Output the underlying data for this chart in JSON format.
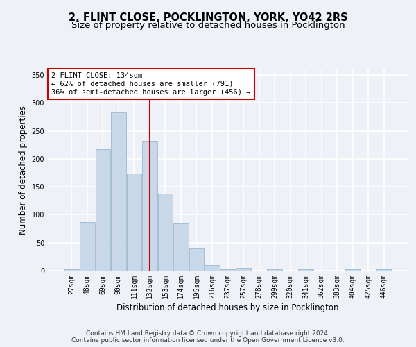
{
  "title1": "2, FLINT CLOSE, POCKLINGTON, YORK, YO42 2RS",
  "title2": "Size of property relative to detached houses in Pocklington",
  "xlabel": "Distribution of detached houses by size in Pocklington",
  "ylabel": "Number of detached properties",
  "bin_labels": [
    "27sqm",
    "48sqm",
    "69sqm",
    "90sqm",
    "111sqm",
    "132sqm",
    "153sqm",
    "174sqm",
    "195sqm",
    "216sqm",
    "237sqm",
    "257sqm",
    "278sqm",
    "299sqm",
    "320sqm",
    "341sqm",
    "362sqm",
    "383sqm",
    "404sqm",
    "425sqm",
    "446sqm"
  ],
  "bar_values": [
    3,
    87,
    217,
    283,
    174,
    232,
    138,
    85,
    40,
    10,
    3,
    5,
    0,
    3,
    0,
    2,
    0,
    0,
    2,
    0,
    2
  ],
  "property_bin_index": 5,
  "bar_color": "#c8d8e8",
  "bar_edge_color": "#8fb0cc",
  "vline_color": "#cc0000",
  "annotation_box_color": "#ffffff",
  "annotation_box_edge": "#cc0000",
  "annotation_text_line1": "2 FLINT CLOSE: 134sqm",
  "annotation_text_line2": "← 62% of detached houses are smaller (791)",
  "annotation_text_line3": "36% of semi-detached houses are larger (456) →",
  "footnote1": "Contains HM Land Registry data © Crown copyright and database right 2024.",
  "footnote2": "Contains public sector information licensed under the Open Government Licence v3.0.",
  "ylim": [
    0,
    360
  ],
  "yticks": [
    0,
    50,
    100,
    150,
    200,
    250,
    300,
    350
  ],
  "background_color": "#eef2f8",
  "plot_bg_color": "#eef2f8",
  "grid_color": "#ffffff",
  "title_fontsize": 10.5,
  "subtitle_fontsize": 9.5,
  "axis_label_fontsize": 8.5,
  "tick_fontsize": 7,
  "annotation_fontsize": 7.5,
  "footnote_fontsize": 6.5
}
